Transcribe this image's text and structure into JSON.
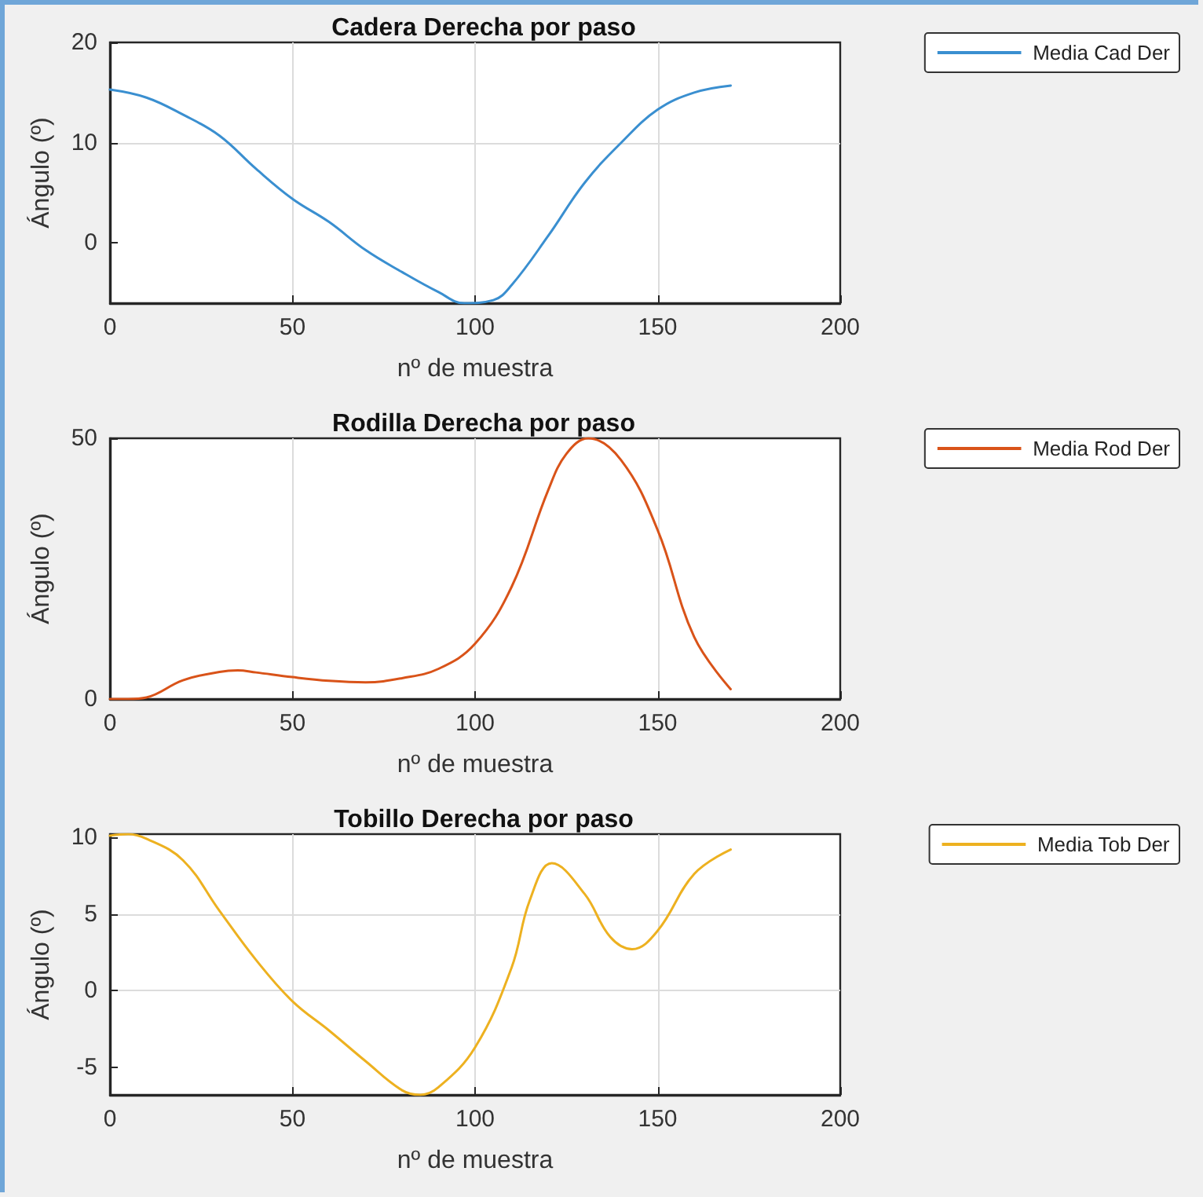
{
  "chart_data": [
    {
      "type": "line",
      "title": "Cadera Derecha por paso",
      "xlabel": "nº de muestra",
      "ylabel": "Ángulo (º)",
      "xlim": [
        0,
        200
      ],
      "xticks": [
        0,
        50,
        100,
        150,
        200
      ],
      "ylim": [
        -6,
        20
      ],
      "yticks": [
        0,
        10,
        20
      ],
      "grid": true,
      "legend": "top right",
      "x": [
        0,
        10,
        20,
        30,
        40,
        50,
        60,
        70,
        80,
        90,
        97,
        105,
        110,
        120,
        130,
        140,
        150,
        160,
        170
      ],
      "series": [
        {
          "name": "Media Cad Der",
          "color": "#3a8fd0",
          "values": [
            15.3,
            14.5,
            12.8,
            10.7,
            7.4,
            4.4,
            2.1,
            -0.7,
            -2.9,
            -4.9,
            -6,
            -5.7,
            -4.2,
            0.7,
            6,
            10,
            13.3,
            15,
            15.7
          ]
        }
      ]
    },
    {
      "type": "line",
      "title": "Rodilla Derecha por paso",
      "xlabel": "nº de muestra",
      "ylabel": "Ángulo (º)",
      "xlim": [
        0,
        200
      ],
      "xticks": [
        0,
        50,
        100,
        150,
        200
      ],
      "ylim": [
        0,
        50
      ],
      "yticks": [
        0,
        50
      ],
      "grid": true,
      "legend": "top right",
      "x": [
        0,
        5,
        10,
        20,
        30,
        35,
        40,
        50,
        60,
        70,
        80,
        90,
        100,
        110,
        120,
        125,
        131,
        140,
        150,
        160,
        170
      ],
      "series": [
        {
          "name": "Media Rod Der",
          "color": "#d95319",
          "values": [
            0,
            0,
            0.3,
            3.6,
            5.2,
            5.5,
            5.1,
            4.2,
            3.5,
            3.2,
            4,
            5.8,
            10.6,
            21.5,
            40,
            47,
            50,
            45.8,
            32.4,
            11.9,
            1.9
          ]
        }
      ]
    },
    {
      "type": "line",
      "title": "Tobillo Derecha por paso",
      "xlabel": "nº de muestra",
      "ylabel": "Ángulo (º)",
      "xlim": [
        0,
        200
      ],
      "xticks": [
        0,
        50,
        100,
        150,
        200
      ],
      "ylim": [
        -6.8,
        10.2
      ],
      "yticks": [
        -5,
        0,
        5,
        10
      ],
      "grid": true,
      "legend": "top right",
      "x": [
        0,
        5,
        10,
        20,
        30,
        40,
        50,
        60,
        70,
        80,
        85,
        90,
        100,
        110,
        115,
        121,
        130,
        137,
        143,
        150,
        160,
        170
      ],
      "series": [
        {
          "name": "Media Tob Der",
          "color": "#edb120",
          "values": [
            10.1,
            10.2,
            9.9,
            8.5,
            5.2,
            2,
            -0.7,
            -2.6,
            -4.6,
            -6.5,
            -6.8,
            -6.3,
            -3.7,
            1.5,
            5.9,
            8.3,
            6.3,
            3.5,
            2.7,
            3.9,
            7.6,
            9.2
          ]
        }
      ]
    }
  ]
}
